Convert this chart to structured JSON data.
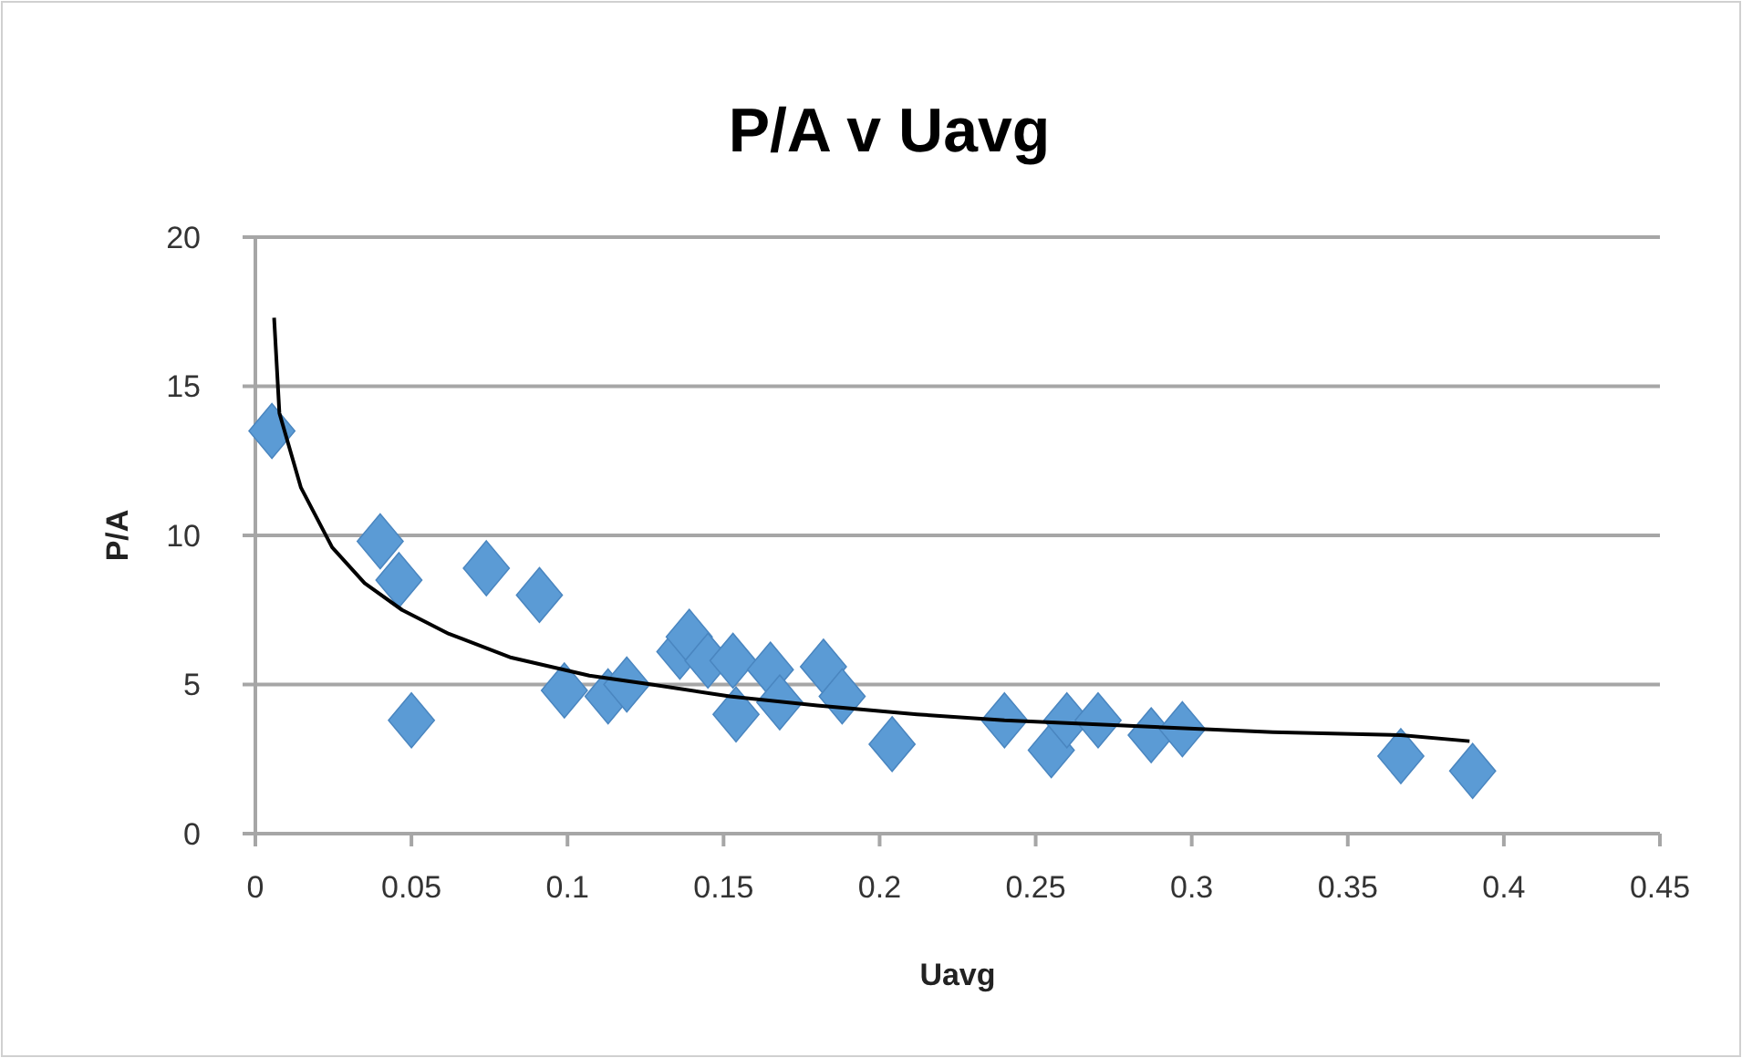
{
  "chart_data": {
    "type": "scatter",
    "title": "P/A v Uavg",
    "xlabel": "Uavg",
    "ylabel": "P/A",
    "xlim": [
      0,
      0.45
    ],
    "ylim": [
      0,
      20
    ],
    "xticks": [
      0,
      0.05,
      0.1,
      0.15,
      0.2,
      0.25,
      0.3,
      0.35,
      0.4,
      0.45
    ],
    "yticks": [
      0,
      5,
      10,
      15,
      20
    ],
    "grid": "y",
    "series": [
      {
        "marker": "diamond",
        "color": "#5b9bd5",
        "x": [
          0.0053,
          0.04,
          0.046,
          0.05,
          0.074,
          0.091,
          0.099,
          0.113,
          0.119,
          0.136,
          0.139,
          0.145,
          0.153,
          0.154,
          0.165,
          0.168,
          0.182,
          0.188,
          0.204,
          0.24,
          0.255,
          0.26,
          0.27,
          0.287,
          0.297,
          0.367,
          0.39
        ],
        "values": [
          13.5,
          9.8,
          8.5,
          3.8,
          8.9,
          8.0,
          4.8,
          4.6,
          5.0,
          6.1,
          6.6,
          5.8,
          5.8,
          4.0,
          5.5,
          4.4,
          5.6,
          4.6,
          3.0,
          3.8,
          2.8,
          3.8,
          3.8,
          3.3,
          3.5,
          2.6,
          2.1
        ]
      },
      {
        "type": "line",
        "marker": "none",
        "color": "#000000",
        "x": [
          0.006,
          0.0077,
          0.0146,
          0.0246,
          0.035,
          0.047,
          0.062,
          0.082,
          0.107,
          0.127,
          0.152,
          0.18,
          0.212,
          0.24,
          0.326,
          0.367,
          0.389
        ],
        "values": [
          17.3,
          14.1,
          11.6,
          9.6,
          8.4,
          7.5,
          6.7,
          5.9,
          5.3,
          5.0,
          4.6,
          4.3,
          4.0,
          3.8,
          3.4,
          3.3,
          3.1
        ]
      }
    ]
  }
}
